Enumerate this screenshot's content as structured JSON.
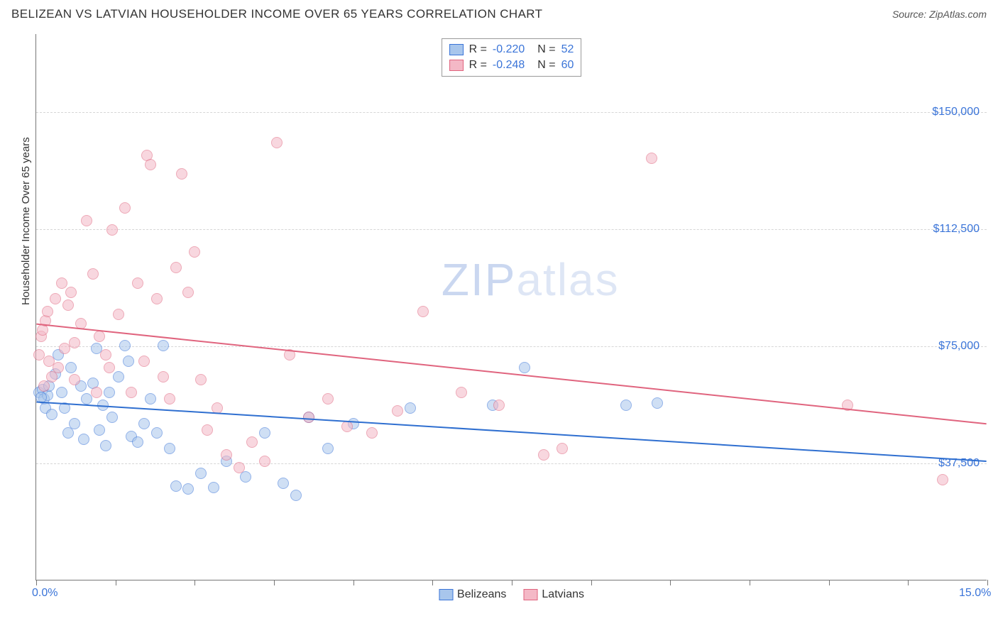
{
  "header": {
    "title": "BELIZEAN VS LATVIAN HOUSEHOLDER INCOME OVER 65 YEARS CORRELATION CHART",
    "source_prefix": "Source: ",
    "source_name": "ZipAtlas.com"
  },
  "watermark": {
    "part1": "ZIP",
    "part2": "atlas"
  },
  "chart": {
    "type": "scatter",
    "ylabel": "Householder Income Over 65 years",
    "xlim": [
      0,
      15
    ],
    "ylim": [
      0,
      175000
    ],
    "x_ticks": [
      0,
      1.25,
      2.5,
      3.75,
      5,
      6.25,
      7.5,
      8.75,
      10,
      11.25,
      12.5,
      13.75,
      15
    ],
    "x_tick_labels": {
      "0": "0.0%",
      "15": "15.0%"
    },
    "y_gridlines": [
      37500,
      75000,
      112500,
      150000
    ],
    "y_tick_labels": {
      "37500": "$37,500",
      "75000": "$75,000",
      "112500": "$112,500",
      "150000": "$150,000"
    },
    "background_color": "#ffffff",
    "grid_color": "#d6d6d6",
    "axis_color": "#777777",
    "label_color": "#3a74d8",
    "point_radius": 8,
    "point_opacity": 0.55,
    "series": [
      {
        "name": "Belizeans",
        "fill": "#a8c6ec",
        "stroke": "#3a74d8",
        "line_color": "#2f6fd0",
        "R": "-0.220",
        "N": "52",
        "trend": {
          "y_at_xmin": 57000,
          "y_at_xmax": 38000
        },
        "points": [
          [
            0.05,
            60000
          ],
          [
            0.1,
            61000
          ],
          [
            0.12,
            58000
          ],
          [
            0.15,
            55000
          ],
          [
            0.18,
            59000
          ],
          [
            0.2,
            62000
          ],
          [
            0.25,
            53000
          ],
          [
            0.3,
            66000
          ],
          [
            0.35,
            72000
          ],
          [
            0.4,
            60000
          ],
          [
            0.45,
            55000
          ],
          [
            0.5,
            47000
          ],
          [
            0.55,
            68000
          ],
          [
            0.6,
            50000
          ],
          [
            0.7,
            62000
          ],
          [
            0.75,
            45000
          ],
          [
            0.8,
            58000
          ],
          [
            0.9,
            63000
          ],
          [
            0.95,
            74000
          ],
          [
            1.0,
            48000
          ],
          [
            1.05,
            56000
          ],
          [
            1.1,
            43000
          ],
          [
            1.15,
            60000
          ],
          [
            1.2,
            52000
          ],
          [
            1.3,
            65000
          ],
          [
            1.4,
            75000
          ],
          [
            1.45,
            70000
          ],
          [
            1.5,
            46000
          ],
          [
            1.6,
            44000
          ],
          [
            1.7,
            50000
          ],
          [
            1.8,
            58000
          ],
          [
            1.9,
            47000
          ],
          [
            2.0,
            75000
          ],
          [
            2.1,
            42000
          ],
          [
            2.2,
            30000
          ],
          [
            2.4,
            29000
          ],
          [
            2.6,
            34000
          ],
          [
            2.8,
            29500
          ],
          [
            3.0,
            38000
          ],
          [
            3.3,
            33000
          ],
          [
            3.6,
            47000
          ],
          [
            3.9,
            31000
          ],
          [
            4.1,
            27000
          ],
          [
            4.3,
            52000
          ],
          [
            4.6,
            42000
          ],
          [
            5.0,
            50000
          ],
          [
            5.9,
            55000
          ],
          [
            7.2,
            56000
          ],
          [
            7.7,
            68000
          ],
          [
            9.3,
            56000
          ],
          [
            9.8,
            56500
          ],
          [
            0.08,
            58500
          ]
        ]
      },
      {
        "name": "Latvians",
        "fill": "#f4b8c6",
        "stroke": "#e0647e",
        "line_color": "#e0647e",
        "R": "-0.248",
        "N": "60",
        "trend": {
          "y_at_xmin": 82000,
          "y_at_xmax": 50000
        },
        "points": [
          [
            0.05,
            72000
          ],
          [
            0.08,
            78000
          ],
          [
            0.1,
            80000
          ],
          [
            0.12,
            62000
          ],
          [
            0.15,
            83000
          ],
          [
            0.18,
            86000
          ],
          [
            0.2,
            70000
          ],
          [
            0.25,
            65000
          ],
          [
            0.3,
            90000
          ],
          [
            0.35,
            68000
          ],
          [
            0.4,
            95000
          ],
          [
            0.45,
            74000
          ],
          [
            0.5,
            88000
          ],
          [
            0.55,
            92000
          ],
          [
            0.6,
            64000
          ],
          [
            0.7,
            82000
          ],
          [
            0.8,
            115000
          ],
          [
            0.9,
            98000
          ],
          [
            1.0,
            78000
          ],
          [
            1.1,
            72000
          ],
          [
            1.2,
            112000
          ],
          [
            1.3,
            85000
          ],
          [
            1.4,
            119000
          ],
          [
            1.5,
            60000
          ],
          [
            1.6,
            95000
          ],
          [
            1.7,
            70000
          ],
          [
            1.75,
            136000
          ],
          [
            1.8,
            133000
          ],
          [
            1.9,
            90000
          ],
          [
            2.0,
            65000
          ],
          [
            2.1,
            58000
          ],
          [
            2.2,
            100000
          ],
          [
            2.3,
            130000
          ],
          [
            2.4,
            92000
          ],
          [
            2.5,
            105000
          ],
          [
            2.6,
            64000
          ],
          [
            2.7,
            48000
          ],
          [
            2.85,
            55000
          ],
          [
            3.0,
            40000
          ],
          [
            3.2,
            36000
          ],
          [
            3.4,
            44000
          ],
          [
            3.6,
            38000
          ],
          [
            3.8,
            140000
          ],
          [
            4.0,
            72000
          ],
          [
            4.3,
            52000
          ],
          [
            4.6,
            58000
          ],
          [
            4.9,
            49000
          ],
          [
            5.3,
            47000
          ],
          [
            5.7,
            54000
          ],
          [
            6.1,
            86000
          ],
          [
            6.7,
            60000
          ],
          [
            7.3,
            56000
          ],
          [
            8.0,
            40000
          ],
          [
            8.3,
            42000
          ],
          [
            9.7,
            135000
          ],
          [
            12.8,
            56000
          ],
          [
            14.3,
            32000
          ],
          [
            0.6,
            76000
          ],
          [
            1.15,
            68000
          ],
          [
            0.95,
            60000
          ]
        ]
      }
    ]
  },
  "legend_bottom": [
    {
      "label": "Belizeans",
      "fill": "#a8c6ec",
      "stroke": "#3a74d8"
    },
    {
      "label": "Latvians",
      "fill": "#f4b8c6",
      "stroke": "#e0647e"
    }
  ]
}
